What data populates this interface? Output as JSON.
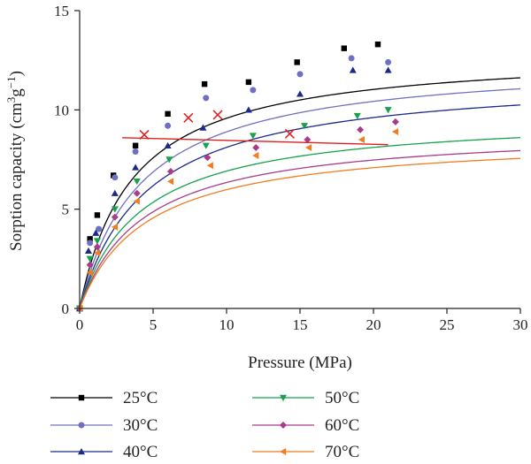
{
  "chart_data": {
    "type": "scatter",
    "xlabel": "Pressure (MPa)",
    "ylabel": "Sorption capacity (cm3g−1)",
    "ylabel_parts": {
      "pre": "Sorption capacity (cm",
      "sup1": "3",
      "mid": "g",
      "sup2": "−1",
      "post": ")"
    },
    "xlim": [
      0,
      30
    ],
    "ylim": [
      0,
      15
    ],
    "xticks": [
      0,
      5,
      10,
      15,
      20,
      25,
      30
    ],
    "yticks": [
      0,
      5,
      10,
      15
    ],
    "grid": false,
    "legend_position": "bottom",
    "series": [
      {
        "name": "25°C",
        "color": "#000000",
        "marker": "square",
        "points": [
          [
            0,
            0
          ],
          [
            0.7,
            3.5
          ],
          [
            1.2,
            4.7
          ],
          [
            2.3,
            6.7
          ],
          [
            3.8,
            8.2
          ],
          [
            6,
            9.8
          ],
          [
            8.5,
            11.3
          ],
          [
            11.5,
            11.4
          ],
          [
            14.8,
            12.4
          ],
          [
            18,
            13.1
          ],
          [
            20.3,
            13.3
          ]
        ],
        "fit": {
          "qmax": 13.0,
          "b": 0.28
        }
      },
      {
        "name": "30°C",
        "color": "#6f6fc4",
        "marker": "circle",
        "points": [
          [
            0,
            0
          ],
          [
            0.7,
            3.3
          ],
          [
            1.3,
            4.0
          ],
          [
            2.4,
            6.6
          ],
          [
            3.8,
            7.9
          ],
          [
            6,
            9.2
          ],
          [
            8.6,
            10.6
          ],
          [
            11.8,
            11.0
          ],
          [
            15,
            11.8
          ],
          [
            18.5,
            12.6
          ],
          [
            21,
            12.4
          ]
        ],
        "fit": {
          "qmax": 12.6,
          "b": 0.24
        }
      },
      {
        "name": "40°C",
        "color": "#1a2a8c",
        "marker": "triangle-up",
        "points": [
          [
            0,
            0
          ],
          [
            0.6,
            2.9
          ],
          [
            1.1,
            3.8
          ],
          [
            2.4,
            5.8
          ],
          [
            3.8,
            7.1
          ],
          [
            6,
            8.2
          ],
          [
            8.4,
            9.1
          ],
          [
            11.5,
            10.0
          ],
          [
            15,
            10.8
          ],
          [
            18.6,
            12.0
          ],
          [
            21,
            12.0
          ]
        ],
        "fit": {
          "qmax": 11.8,
          "b": 0.22
        }
      },
      {
        "name": "50°C",
        "color": "#15a24a",
        "marker": "triangle-down",
        "points": [
          [
            0,
            0
          ],
          [
            0.7,
            2.5
          ],
          [
            1.2,
            3.4
          ],
          [
            2.4,
            5.0
          ],
          [
            3.9,
            6.4
          ],
          [
            6.1,
            7.5
          ],
          [
            8.6,
            8.2
          ],
          [
            11.8,
            8.7
          ],
          [
            15.3,
            9.2
          ],
          [
            18.9,
            9.7
          ],
          [
            21,
            10.0
          ]
        ],
        "fit": {
          "qmax": 9.8,
          "b": 0.24
        }
      },
      {
        "name": "60°C",
        "color": "#a83c8a",
        "marker": "diamond",
        "points": [
          [
            0,
            0
          ],
          [
            0.7,
            2.2
          ],
          [
            1.2,
            3.1
          ],
          [
            2.4,
            4.6
          ],
          [
            3.9,
            5.8
          ],
          [
            6.2,
            6.9
          ],
          [
            8.7,
            7.6
          ],
          [
            12,
            8.1
          ],
          [
            15.5,
            8.5
          ],
          [
            19.1,
            9.0
          ],
          [
            21.5,
            9.4
          ]
        ],
        "fit": {
          "qmax": 9.1,
          "b": 0.23
        }
      },
      {
        "name": "70°C",
        "color": "#f27c1f",
        "marker": "triangle-left",
        "points": [
          [
            0,
            0
          ],
          [
            0.7,
            1.8
          ],
          [
            1.2,
            2.8
          ],
          [
            2.4,
            4.1
          ],
          [
            3.9,
            5.4
          ],
          [
            6.2,
            6.4
          ],
          [
            8.9,
            7.2
          ],
          [
            12,
            7.7
          ],
          [
            15.6,
            8.1
          ],
          [
            19.2,
            8.5
          ],
          [
            21.5,
            8.9
          ]
        ],
        "fit": {
          "qmax": 8.7,
          "b": 0.22
        }
      }
    ],
    "crossover_line": {
      "color": "#e01e1e",
      "line": [
        [
          2.9,
          8.6
        ],
        [
          21,
          8.25
        ]
      ],
      "markers": [
        [
          4.4,
          8.75
        ],
        [
          7.4,
          9.6
        ],
        [
          9.4,
          9.75
        ],
        [
          14.3,
          8.8
        ]
      ]
    }
  }
}
